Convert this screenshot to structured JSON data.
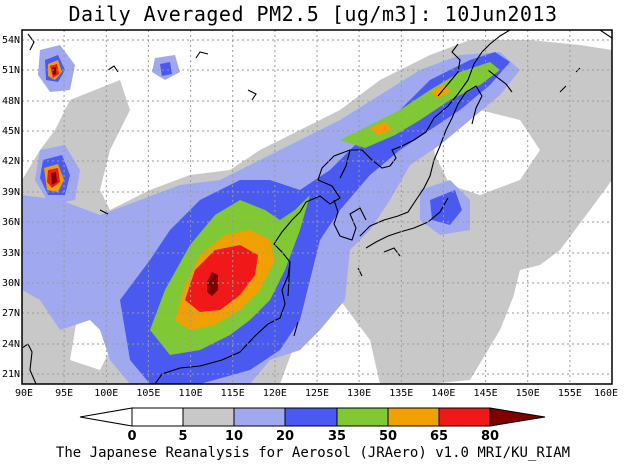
{
  "title": "Daily Averaged PM2.5 [ug/m3]: 10Jun2013",
  "credit": "The Japanese Reanalysis for Aerosol (JRAero) v1.0 MRI/KU_RIAM",
  "map": {
    "lon_range": [
      90,
      160
    ],
    "lat_range": [
      20,
      55
    ],
    "lon_ticks": [
      "90E",
      "95E",
      "100E",
      "105E",
      "110E",
      "115E",
      "120E",
      "125E",
      "130E",
      "135E",
      "140E",
      "145E",
      "150E",
      "155E",
      "160E"
    ],
    "lat_ticks": [
      "21N",
      "24N",
      "27N",
      "30N",
      "33N",
      "36N",
      "39N",
      "42N",
      "45N",
      "48N",
      "51N",
      "54N"
    ],
    "grid": true,
    "max_location": {
      "lon": 113,
      "lat": 30
    }
  },
  "colorbar": {
    "levels": [
      "0",
      "5",
      "10",
      "20",
      "35",
      "50",
      "65",
      "80"
    ],
    "colors": [
      "#ffffff",
      "#c8c8c8",
      "#a0a8f0",
      "#4a5af0",
      "#80c834",
      "#f0a000",
      "#f01818",
      "#800000"
    ]
  }
}
